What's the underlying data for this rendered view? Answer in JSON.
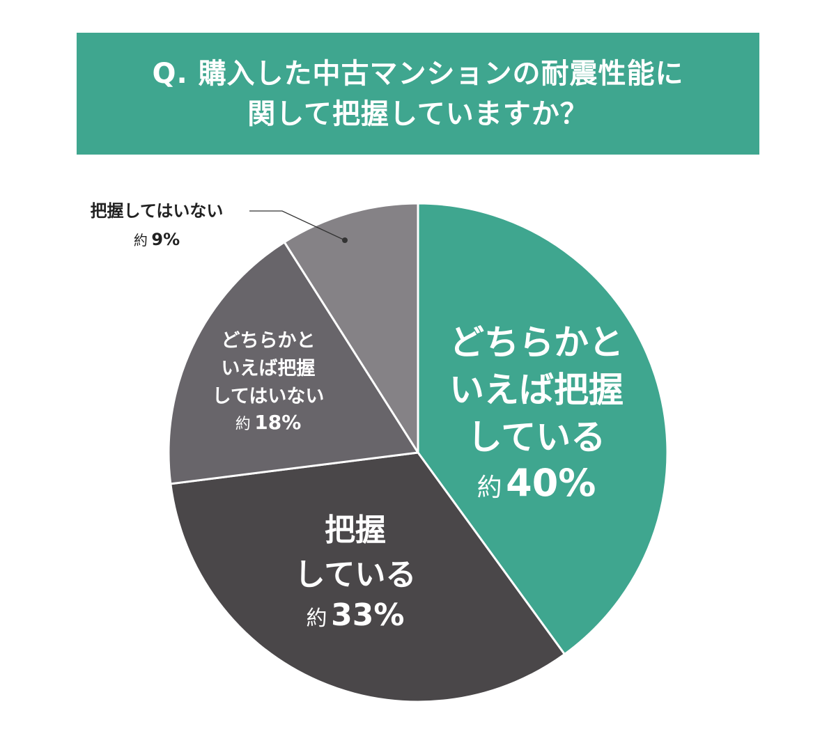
{
  "title": {
    "line1": "Q. 購入した中古マンションの耐震性能に",
    "line2": "関して把握していますか？",
    "bg_color": "#3fa68f"
  },
  "chart_data": {
    "type": "pie",
    "title": "Q. 購入した中古マンションの耐震性能に関して把握していますか？",
    "start_angle": "12 o'clock, clockwise",
    "categories": [
      "どちらかといえば把握している",
      "把握している",
      "どちらかといえば把握してはいない",
      "把握してはいない"
    ],
    "values": [
      40,
      33,
      18,
      9
    ],
    "unit": "%",
    "colors": [
      "#3fa68f",
      "#4a4749",
      "#68656a",
      "#858286"
    ],
    "slices": [
      {
        "label_lines": [
          "どちらかと",
          "いえば把握",
          "している"
        ],
        "approx": "約",
        "value_text": "40%",
        "value": 40,
        "color": "#3fa68f"
      },
      {
        "label_lines": [
          "把握",
          "している"
        ],
        "approx": "約",
        "value_text": "33%",
        "value": 33,
        "color": "#4a4749"
      },
      {
        "label_lines": [
          "どちらかと",
          "いえば把握",
          "してはいない"
        ],
        "approx": "約",
        "value_text": "18%",
        "value": 18,
        "color": "#68656a"
      },
      {
        "label_lines": [
          "把握してはいない"
        ],
        "approx": "約",
        "value_text": "9%",
        "value": 9,
        "color": "#858286",
        "callout": true
      }
    ]
  }
}
